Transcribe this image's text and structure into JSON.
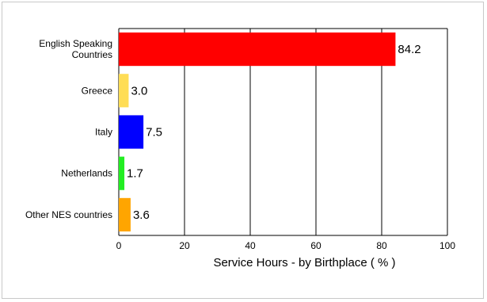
{
  "chart_data": {
    "type": "bar",
    "orientation": "horizontal",
    "categories": [
      [
        "English Speaking",
        "Countries"
      ],
      [
        "Greece"
      ],
      [
        "Italy"
      ],
      [
        "Netherlands"
      ],
      [
        "Other NES countries"
      ]
    ],
    "values": [
      84.2,
      3.0,
      7.5,
      1.7,
      3.6
    ],
    "value_labels": [
      "84.2",
      "3.0",
      "7.5",
      "1.7",
      "3.6"
    ],
    "colors": [
      "#ff0000",
      "#ffdd55",
      "#0000ff",
      "#22ee22",
      "#ffa500"
    ],
    "xlabel": "Service Hours - by Birthplace ( % )",
    "xlim": [
      0,
      100
    ],
    "xticks": [
      0,
      20,
      40,
      60,
      80,
      100
    ],
    "grid": "vertical"
  }
}
